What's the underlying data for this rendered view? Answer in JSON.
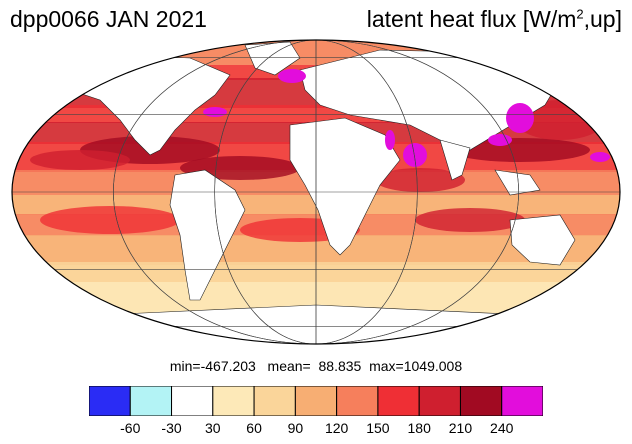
{
  "title": {
    "left": "dpp0066 JAN 2021",
    "right_prefix": "latent heat flux [W/m",
    "right_sup": "2",
    "right_suffix": ",up]"
  },
  "stats": {
    "min": "min=-467.203",
    "mean": "mean=  88.835",
    "max": "max=1049.008"
  },
  "colorbar": {
    "colors": [
      "#2a2cf5",
      "#b3f3f5",
      "#ffffff",
      "#fde9b8",
      "#fad59a",
      "#f7ae73",
      "#f67f5c",
      "#ef2f35",
      "#cf1f2f",
      "#a10a22",
      "#e20ddc"
    ],
    "ticks": [
      "-60",
      "-30",
      "30",
      "60",
      "90",
      "120",
      "150",
      "180",
      "210",
      "240"
    ]
  },
  "map": {
    "projection": "mollweide",
    "land_color": "#ffffff",
    "ocean_palette": [
      "#fde9b8",
      "#fad59a",
      "#f7ae73",
      "#f67f5c",
      "#ef2f35",
      "#cf1f2f",
      "#a10a22"
    ],
    "highlight_color": "#e20ddc"
  }
}
